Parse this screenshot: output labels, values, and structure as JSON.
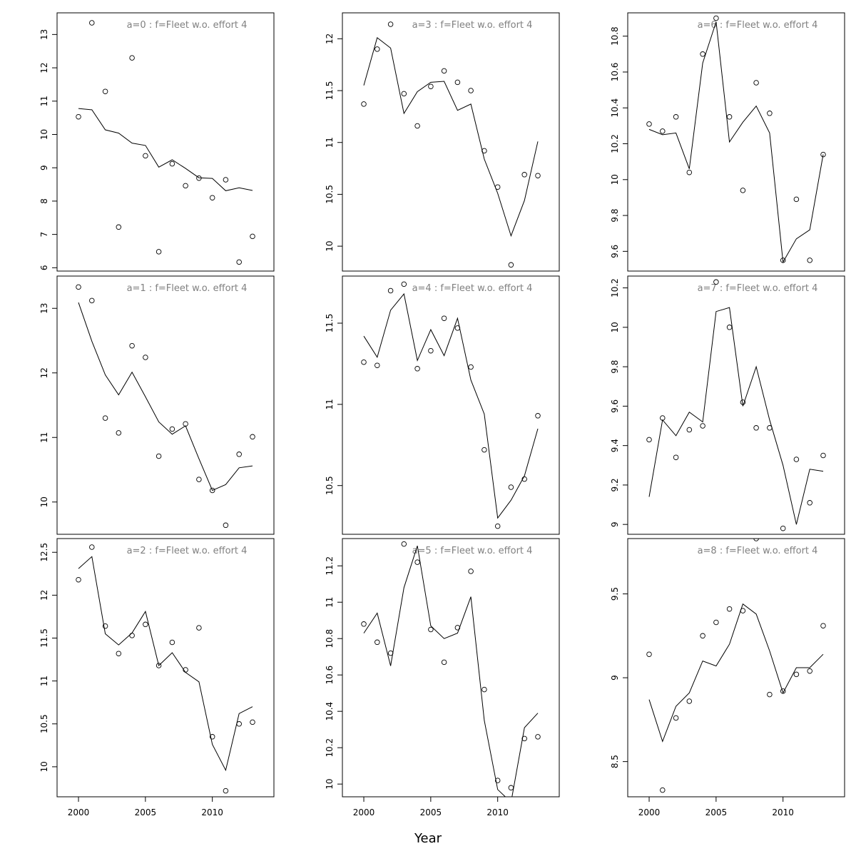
{
  "xlabel": "Year",
  "chart_data": [
    {
      "type": "line",
      "title": "a=0  :  f=Fleet w.o. effort 4",
      "x": [
        2000,
        2001,
        2002,
        2003,
        2004,
        2005,
        2006,
        2007,
        2008,
        2009,
        2010,
        2011,
        2012,
        2013
      ],
      "xlim": [
        1998.4,
        2014.6
      ],
      "ylim": [
        5.9,
        13.65
      ],
      "yticks": [
        6,
        7,
        8,
        9,
        10,
        11,
        12,
        13
      ],
      "series": [
        {
          "kind": "line",
          "values": [
            10.78,
            10.74,
            10.14,
            10.04,
            9.74,
            9.67,
            9.02,
            9.24,
            8.98,
            8.7,
            8.68,
            8.31,
            8.4,
            8.32
          ]
        },
        {
          "kind": "points",
          "values": [
            10.53,
            13.35,
            11.29,
            7.22,
            12.3,
            9.36,
            6.48,
            9.12,
            8.46,
            8.69,
            8.1,
            8.64,
            6.17,
            6.94
          ]
        }
      ]
    },
    {
      "type": "line",
      "title": "a=1  :  f=Fleet w.o. effort 4",
      "x": [
        2000,
        2001,
        2002,
        2003,
        2004,
        2005,
        2006,
        2007,
        2008,
        2009,
        2010,
        2011,
        2012,
        2013
      ],
      "xlim": [
        1998.4,
        2014.6
      ],
      "ylim": [
        9.5,
        13.5
      ],
      "yticks": [
        10,
        11,
        12,
        13
      ],
      "series": [
        {
          "kind": "line",
          "values": [
            13.09,
            12.49,
            11.97,
            11.66,
            12.01,
            11.63,
            11.24,
            11.05,
            11.18,
            10.67,
            10.18,
            10.27,
            10.53,
            10.56
          ]
        },
        {
          "kind": "points",
          "values": [
            13.33,
            13.12,
            11.3,
            11.07,
            12.42,
            12.24,
            10.71,
            11.13,
            11.21,
            10.35,
            10.18,
            9.64,
            10.74,
            11.01
          ]
        }
      ]
    },
    {
      "type": "line",
      "title": "a=2  :  f=Fleet w.o. effort 4",
      "x": [
        2000,
        2001,
        2002,
        2003,
        2004,
        2005,
        2006,
        2007,
        2008,
        2009,
        2010,
        2011,
        2012,
        2013
      ],
      "xlim": [
        1998.4,
        2014.6
      ],
      "ylim": [
        9.65,
        12.66
      ],
      "yticks": [
        10.0,
        10.5,
        11.0,
        11.5,
        12.0,
        12.5
      ],
      "series": [
        {
          "kind": "line",
          "values": [
            12.31,
            12.45,
            11.55,
            11.42,
            11.56,
            11.81,
            11.18,
            11.33,
            11.1,
            10.99,
            10.26,
            9.96,
            10.62,
            10.7
          ]
        },
        {
          "kind": "points",
          "values": [
            12.18,
            12.56,
            11.64,
            11.32,
            11.53,
            11.66,
            11.18,
            11.45,
            11.13,
            11.62,
            10.35,
            9.72,
            10.5,
            10.52
          ]
        }
      ]
    },
    {
      "type": "line",
      "title": "a=3  :  f=Fleet w.o. effort 4",
      "x": [
        2000,
        2001,
        2002,
        2003,
        2004,
        2005,
        2006,
        2007,
        2008,
        2009,
        2010,
        2011,
        2012,
        2013
      ],
      "xlim": [
        1998.4,
        2014.6
      ],
      "ylim": [
        9.76,
        12.25
      ],
      "yticks": [
        10.0,
        10.5,
        11.0,
        11.5,
        12.0
      ],
      "series": [
        {
          "kind": "line",
          "values": [
            11.55,
            12.01,
            11.91,
            11.28,
            11.49,
            11.58,
            11.59,
            11.31,
            11.37,
            10.84,
            10.51,
            10.1,
            10.44,
            11.01
          ]
        },
        {
          "kind": "points",
          "values": [
            11.37,
            11.9,
            12.14,
            11.47,
            11.16,
            11.54,
            11.69,
            11.58,
            11.5,
            10.92,
            10.57,
            9.82,
            10.69,
            10.68
          ]
        }
      ]
    },
    {
      "type": "line",
      "title": "a=4  :  f=Fleet w.o. effort 4",
      "x": [
        2000,
        2001,
        2002,
        2003,
        2004,
        2005,
        2006,
        2007,
        2008,
        2009,
        2010,
        2011,
        2012,
        2013
      ],
      "xlim": [
        1998.4,
        2014.6
      ],
      "ylim": [
        10.2,
        11.79
      ],
      "yticks": [
        10.5,
        11.0,
        11.5
      ],
      "series": [
        {
          "kind": "line",
          "values": [
            11.42,
            11.29,
            11.58,
            11.68,
            11.27,
            11.46,
            11.3,
            11.53,
            11.15,
            10.94,
            10.3,
            10.41,
            10.56,
            10.85
          ]
        },
        {
          "kind": "points",
          "values": [
            11.26,
            11.24,
            11.7,
            11.74,
            11.22,
            11.33,
            11.53,
            11.47,
            11.23,
            10.72,
            10.25,
            10.49,
            10.54,
            10.93
          ]
        }
      ]
    },
    {
      "type": "line",
      "title": "a=5  :  f=Fleet w.o. effort 4",
      "x": [
        2000,
        2001,
        2002,
        2003,
        2004,
        2005,
        2006,
        2007,
        2008,
        2009,
        2010,
        2011,
        2012,
        2013
      ],
      "xlim": [
        1998.4,
        2014.6
      ],
      "ylim": [
        9.93,
        11.35
      ],
      "yticks": [
        10.0,
        10.2,
        10.4,
        10.6,
        10.8,
        11.0,
        11.2
      ],
      "series": [
        {
          "kind": "line",
          "values": [
            10.83,
            10.94,
            10.65,
            11.08,
            11.31,
            10.87,
            10.8,
            10.83,
            11.03,
            10.35,
            9.97,
            9.9,
            10.31,
            10.39
          ]
        },
        {
          "kind": "points",
          "values": [
            10.88,
            10.78,
            10.72,
            11.32,
            11.22,
            10.85,
            10.67,
            10.86,
            11.17,
            10.52,
            10.02,
            9.98,
            10.25,
            10.26
          ]
        }
      ]
    },
    {
      "type": "line",
      "title": "a=6  :  f=Fleet w.o. effort 4",
      "x": [
        2000,
        2001,
        2002,
        2003,
        2004,
        2005,
        2006,
        2007,
        2008,
        2009,
        2010,
        2011,
        2012,
        2013
      ],
      "xlim": [
        1998.4,
        2014.6
      ],
      "ylim": [
        9.49,
        10.93
      ],
      "yticks": [
        9.6,
        9.8,
        10.0,
        10.2,
        10.4,
        10.6,
        10.8
      ],
      "series": [
        {
          "kind": "line",
          "values": [
            10.28,
            10.25,
            10.26,
            10.06,
            10.65,
            10.88,
            10.21,
            10.32,
            10.41,
            10.26,
            9.54,
            9.67,
            9.72,
            10.14
          ]
        },
        {
          "kind": "points",
          "values": [
            10.31,
            10.27,
            10.35,
            10.04,
            10.7,
            10.9,
            10.35,
            9.94,
            10.54,
            10.37,
            9.55,
            9.89,
            9.55,
            10.14
          ]
        }
      ]
    },
    {
      "type": "line",
      "title": "a=7  :  f=Fleet w.o. effort 4",
      "x": [
        2000,
        2001,
        2002,
        2003,
        2004,
        2005,
        2006,
        2007,
        2008,
        2009,
        2010,
        2011,
        2012,
        2013
      ],
      "xlim": [
        1998.4,
        2014.6
      ],
      "ylim": [
        8.95,
        10.26
      ],
      "yticks": [
        9.0,
        9.2,
        9.4,
        9.6,
        9.8,
        10.0,
        10.2
      ],
      "series": [
        {
          "kind": "line",
          "values": [
            9.14,
            9.53,
            9.45,
            9.57,
            9.52,
            10.08,
            10.1,
            9.6,
            9.8,
            9.53,
            9.3,
            9.0,
            9.28,
            9.27
          ]
        },
        {
          "kind": "points",
          "values": [
            9.43,
            9.54,
            9.34,
            9.48,
            9.5,
            10.23,
            10.0,
            9.62,
            9.49,
            9.49,
            8.98,
            9.33,
            9.11,
            9.35
          ]
        }
      ]
    },
    {
      "type": "line",
      "title": "a=8  :  f=Fleet w.o. effort 4",
      "x": [
        2000,
        2001,
        2002,
        2003,
        2004,
        2005,
        2006,
        2007,
        2008,
        2009,
        2010,
        2011,
        2012,
        2013
      ],
      "xlim": [
        1998.4,
        2014.6
      ],
      "ylim": [
        8.29,
        9.83
      ],
      "yticks": [
        8.5,
        9.0,
        9.5
      ],
      "series": [
        {
          "kind": "line",
          "values": [
            8.87,
            8.62,
            8.83,
            8.91,
            9.1,
            9.07,
            9.2,
            9.44,
            9.38,
            9.16,
            8.91,
            9.06,
            9.06,
            9.14
          ]
        },
        {
          "kind": "points",
          "values": [
            9.14,
            8.33,
            8.76,
            8.86,
            9.25,
            9.33,
            9.41,
            9.4,
            9.83,
            8.9,
            8.92,
            9.02,
            9.04,
            9.31
          ]
        }
      ]
    }
  ]
}
